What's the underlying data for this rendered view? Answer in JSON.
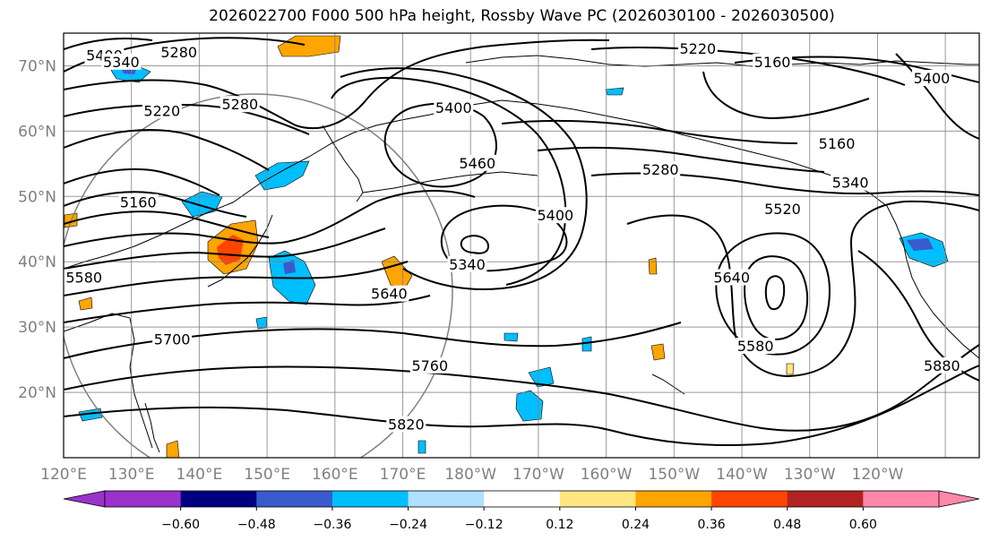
{
  "title": "2026022700 F000 500 hPa height, Rossby Wave PC (2026030100 - 2026030500)",
  "lat_labels": [
    "70°N",
    "60°N",
    "50°N",
    "40°N",
    "30°N",
    "20°N"
  ],
  "lat_values": [
    70,
    60,
    50,
    40,
    30,
    20
  ],
  "lon_labels": [
    "120°E",
    "130°E",
    "140°E",
    "150°E",
    "160°E",
    "170°E",
    "180°W",
    "170°W",
    "160°W",
    "150°W",
    "140°W",
    "130°W",
    "120°W"
  ],
  "lon_values": [
    120,
    130,
    140,
    150,
    160,
    170,
    180,
    190,
    200,
    210,
    220,
    230,
    240
  ],
  "map_extent": {
    "lon_min": 120,
    "lon_max": 255,
    "lat_min": 10,
    "lat_max": 75
  },
  "contour_labels": [
    {
      "text": "5400",
      "lon": 126,
      "lat": 71.5
    },
    {
      "text": "5340",
      "lon": 128.5,
      "lat": 70.5
    },
    {
      "text": "5280",
      "lon": 137,
      "lat": 72
    },
    {
      "text": "5220",
      "lon": 213.5,
      "lat": 72.5
    },
    {
      "text": "5160",
      "lon": 224.5,
      "lat": 70.5
    },
    {
      "text": "5400",
      "lon": 248,
      "lat": 68
    },
    {
      "text": "5280",
      "lon": 146,
      "lat": 64
    },
    {
      "text": "5220",
      "lon": 134.5,
      "lat": 63
    },
    {
      "text": "5400",
      "lon": 177.5,
      "lat": 63.5
    },
    {
      "text": "5460",
      "lon": 181,
      "lat": 55
    },
    {
      "text": "5160",
      "lon": 131,
      "lat": 49
    },
    {
      "text": "5280",
      "lon": 208,
      "lat": 54
    },
    {
      "text": "5160",
      "lon": 234,
      "lat": 58
    },
    {
      "text": "5340",
      "lon": 236,
      "lat": 52
    },
    {
      "text": "5520",
      "lon": 226,
      "lat": 48
    },
    {
      "text": "5400",
      "lon": 192.5,
      "lat": 47
    },
    {
      "text": "5340",
      "lon": 179.5,
      "lat": 39.5
    },
    {
      "text": "5580",
      "lon": 123,
      "lat": 37.5
    },
    {
      "text": "5640",
      "lon": 168,
      "lat": 35
    },
    {
      "text": "5640",
      "lon": 218.5,
      "lat": 37.5
    },
    {
      "text": "5700",
      "lon": 136,
      "lat": 28
    },
    {
      "text": "5760",
      "lon": 174,
      "lat": 24
    },
    {
      "text": "5580",
      "lon": 222,
      "lat": 27
    },
    {
      "text": "5880",
      "lon": 249.5,
      "lat": 24
    },
    {
      "text": "5820",
      "lon": 170.5,
      "lat": 15
    }
  ],
  "colorbar": {
    "ticks": [
      "−0.60",
      "−0.48",
      "−0.36",
      "−0.24",
      "−0.12",
      "0.12",
      "0.24",
      "0.36",
      "0.48",
      "0.60"
    ],
    "colors": [
      "#9933cc",
      "#000080",
      "#3a5bcc",
      "#00bfff",
      "#b0e0ff",
      "#ffffff",
      "#ffe680",
      "#ffa500",
      "#ff4500",
      "#b22222",
      "#ff88aa"
    ],
    "extend": "both"
  },
  "anomaly_colors": {
    "positive_light": "#ffe680",
    "positive": "#ffa500",
    "positive_strong": "#ff4500",
    "negative_light": "#b0e0ff",
    "negative": "#00bfff",
    "negative_strong": "#3a5bcc"
  }
}
